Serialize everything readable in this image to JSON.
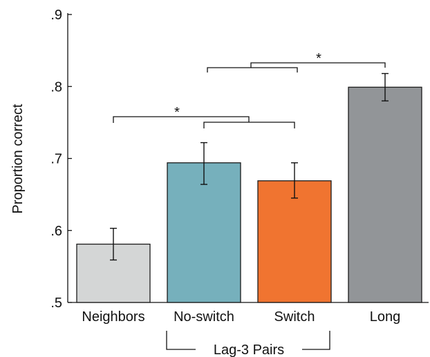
{
  "chart_data": {
    "type": "bar",
    "title": "",
    "xlabel": "",
    "ylabel": "Proportion correct",
    "ylim": [
      0.5,
      0.9
    ],
    "yticks": [
      {
        "value": 0.5,
        "label": ".5"
      },
      {
        "value": 0.6,
        "label": ".6"
      },
      {
        "value": 0.7,
        "label": ".7"
      },
      {
        "value": 0.8,
        "label": ".8"
      },
      {
        "value": 0.9,
        "label": ".9"
      }
    ],
    "categories": [
      "Neighbors",
      "No-switch",
      "Switch",
      "Long"
    ],
    "values": [
      0.581,
      0.694,
      0.669,
      0.799
    ],
    "error_low": [
      0.559,
      0.664,
      0.645,
      0.78
    ],
    "error_high": [
      0.603,
      0.722,
      0.694,
      0.818
    ],
    "colors": [
      "#d4d6d6",
      "#76b0bc",
      "#f07430",
      "#929598"
    ],
    "group_label": "Lag-3 Pairs",
    "significance": [
      {
        "label": "*",
        "left": "Neighbors",
        "right": [
          "No-switch",
          "Switch"
        ]
      },
      {
        "label": "*",
        "left": [
          "No-switch",
          "Switch"
        ],
        "right": "Long"
      }
    ],
    "grid": false,
    "legend": "none"
  }
}
